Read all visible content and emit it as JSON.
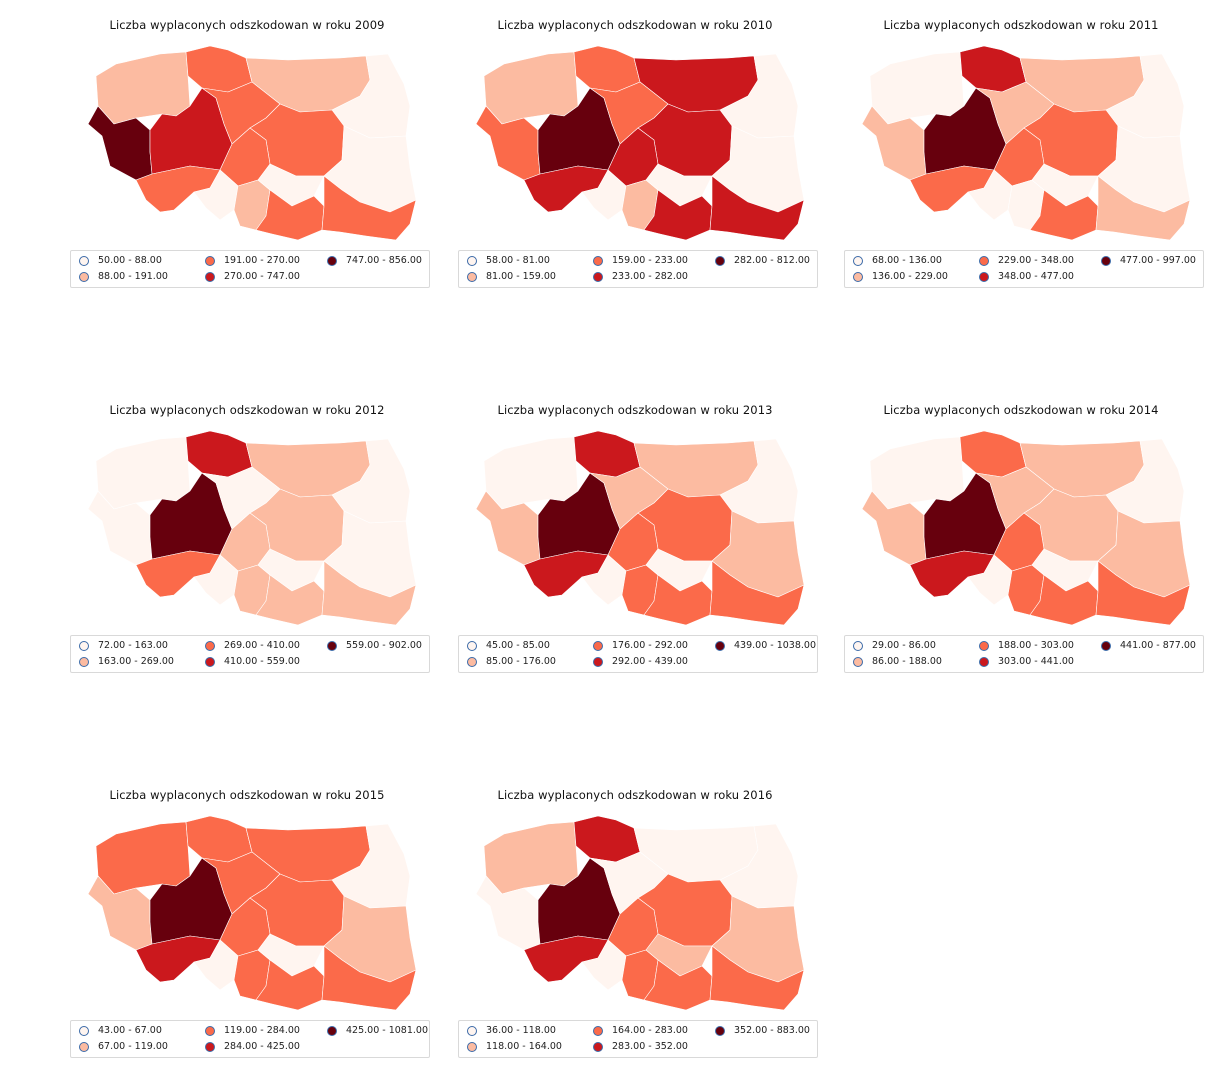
{
  "palette": [
    "#fff5f0",
    "#fcbba1",
    "#fb6a4a",
    "#cb181d",
    "#67000d"
  ],
  "regions": [
    "zachodniopomorskie",
    "pomorskie",
    "warminsko-mazurskie",
    "podlaskie",
    "lubuskie",
    "wielkopolskie",
    "kujawsko-pomorskie",
    "mazowieckie",
    "lodzkie",
    "lubelskie",
    "dolnoslaskie",
    "opolskie",
    "slaskie",
    "swietokrzyskie",
    "malopolskie",
    "podkarpackie"
  ],
  "maps": [
    {
      "title": "Liczba wyplaconych odszkodowan w roku 2009",
      "legend": [
        "50.00 - 88.00",
        "88.00 - 191.00",
        "191.00 - 270.00",
        "270.00 - 747.00",
        "747.00 - 856.00"
      ],
      "classes": [
        1,
        2,
        1,
        0,
        4,
        3,
        2,
        2,
        2,
        0,
        2,
        0,
        1,
        0,
        2,
        2
      ]
    },
    {
      "title": "Liczba wyplaconych odszkodowan w roku 2010",
      "legend": [
        "58.00 - 81.00",
        "81.00 - 159.00",
        "159.00 - 233.00",
        "233.00 - 282.00",
        "282.00 - 812.00"
      ],
      "classes": [
        1,
        2,
        3,
        0,
        2,
        4,
        2,
        3,
        3,
        0,
        3,
        0,
        1,
        0,
        3,
        3
      ]
    },
    {
      "title": "Liczba wyplaconych odszkodowan w roku 2011",
      "legend": [
        "68.00 - 136.00",
        "136.00 - 229.00",
        "229.00 - 348.00",
        "348.00 - 477.00",
        "477.00 - 997.00"
      ],
      "classes": [
        0,
        3,
        1,
        0,
        1,
        4,
        1,
        2,
        2,
        0,
        2,
        0,
        0,
        0,
        2,
        1
      ]
    },
    {
      "title": "Liczba wyplaconych odszkodowan w roku 2012",
      "legend": [
        "72.00 - 163.00",
        "163.00 - 269.00",
        "269.00 - 410.00",
        "410.00 - 559.00",
        "559.00 - 902.00"
      ],
      "classes": [
        0,
        3,
        1,
        0,
        0,
        4,
        0,
        1,
        1,
        0,
        2,
        0,
        1,
        0,
        1,
        1
      ]
    },
    {
      "title": "Liczba wyplaconych odszkodowan w roku 2013",
      "legend": [
        "45.00 - 85.00",
        "85.00 - 176.00",
        "176.00 - 292.00",
        "292.00 - 439.00",
        "439.00 - 1038.00"
      ],
      "classes": [
        0,
        3,
        1,
        0,
        1,
        4,
        1,
        2,
        2,
        1,
        3,
        0,
        2,
        0,
        2,
        2
      ]
    },
    {
      "title": "Liczba wyplaconych odszkodowan w roku 2014",
      "legend": [
        "29.00 - 86.00",
        "86.00 - 188.00",
        "188.00 - 303.00",
        "303.00 - 441.00",
        "441.00 - 877.00"
      ],
      "classes": [
        0,
        2,
        1,
        0,
        1,
        4,
        1,
        1,
        2,
        1,
        3,
        0,
        2,
        0,
        2,
        2
      ]
    },
    {
      "title": "Liczba wyplaconych odszkodowan w roku 2015",
      "legend": [
        "43.00 - 67.00",
        "67.00 - 119.00",
        "119.00 - 284.00",
        "284.00 - 425.00",
        "425.00 - 1081.00"
      ],
      "classes": [
        2,
        2,
        2,
        0,
        1,
        4,
        2,
        2,
        2,
        1,
        3,
        0,
        2,
        0,
        2,
        2
      ]
    },
    {
      "title": "Liczba wyplaconych odszkodowan w roku 2016",
      "legend": [
        "36.00 - 118.00",
        "118.00 - 164.00",
        "164.00 - 283.00",
        "283.00 - 352.00",
        "352.00 - 883.00"
      ],
      "classes": [
        1,
        3,
        0,
        0,
        0,
        4,
        0,
        2,
        2,
        1,
        3,
        0,
        2,
        1,
        2,
        2
      ]
    }
  ]
}
